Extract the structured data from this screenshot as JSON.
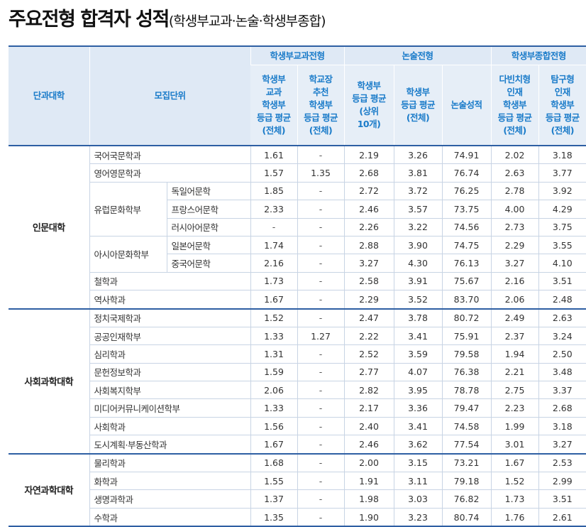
{
  "title": {
    "main": "주요전형 합격자 성적",
    "sub": "(학생부교과·논술·학생부종합)"
  },
  "header": {
    "college": "단과대학",
    "unit": "모집단위",
    "groups": [
      "학생부교과전형",
      "논술전형",
      "학생부종합전형"
    ],
    "columns": [
      [
        "학생부",
        "교과",
        "학생부",
        "등급 평균",
        "(전체)"
      ],
      [
        "학교장",
        "추천",
        "학생부",
        "등급 평균",
        "(전체)"
      ],
      [
        "학생부",
        "등급 평균",
        "(상위",
        "10개)"
      ],
      [
        "학생부",
        "등급 평균",
        "(전체)"
      ],
      [
        "논술성적"
      ],
      [
        "다빈치형",
        "인재",
        "학생부",
        "등급 평균",
        "(전체)"
      ],
      [
        "탐구형",
        "인재",
        "학생부",
        "등급 평균",
        "(전체)"
      ]
    ]
  },
  "colleges": [
    {
      "name": "인문대학",
      "rows": [
        {
          "unit": "국어국문학과",
          "sub": "",
          "values": [
            "1.61",
            "-",
            "2.19",
            "3.26",
            "74.91",
            "2.02",
            "3.18"
          ]
        },
        {
          "unit": "영어영문학과",
          "sub": "",
          "values": [
            "1.57",
            "1.35",
            "2.68",
            "3.81",
            "76.74",
            "2.63",
            "3.77"
          ]
        },
        {
          "unit": "유럽문화학부",
          "sub": "독일어문학",
          "values": [
            "1.85",
            "-",
            "2.72",
            "3.72",
            "76.25",
            "2.78",
            "3.92"
          ]
        },
        {
          "unit": "",
          "sub": "프랑스어문학",
          "values": [
            "2.33",
            "-",
            "2.46",
            "3.57",
            "73.75",
            "4.00",
            "4.29"
          ]
        },
        {
          "unit": "",
          "sub": "러시아어문학",
          "values": [
            "-",
            "-",
            "2.26",
            "3.22",
            "74.56",
            "2.73",
            "3.75"
          ]
        },
        {
          "unit": "아시아문화학부",
          "sub": "일본어문학",
          "values": [
            "1.74",
            "-",
            "2.88",
            "3.90",
            "74.75",
            "2.29",
            "3.55"
          ]
        },
        {
          "unit": "",
          "sub": "중국어문학",
          "values": [
            "2.16",
            "-",
            "3.27",
            "4.30",
            "76.13",
            "3.27",
            "4.10"
          ]
        },
        {
          "unit": "철학과",
          "sub": "",
          "values": [
            "1.73",
            "-",
            "2.58",
            "3.91",
            "75.67",
            "2.16",
            "3.51"
          ]
        },
        {
          "unit": "역사학과",
          "sub": "",
          "values": [
            "1.67",
            "-",
            "2.29",
            "3.52",
            "83.70",
            "2.06",
            "2.48"
          ]
        }
      ]
    },
    {
      "name": "사회과학대학",
      "rows": [
        {
          "unit": "정치국제학과",
          "sub": "",
          "values": [
            "1.52",
            "-",
            "2.47",
            "3.78",
            "80.72",
            "2.49",
            "2.63"
          ]
        },
        {
          "unit": "공공인재학부",
          "sub": "",
          "values": [
            "1.33",
            "1.27",
            "2.22",
            "3.41",
            "75.91",
            "2.37",
            "3.24"
          ]
        },
        {
          "unit": "심리학과",
          "sub": "",
          "values": [
            "1.31",
            "-",
            "2.52",
            "3.59",
            "79.58",
            "1.94",
            "2.50"
          ]
        },
        {
          "unit": "문헌정보학과",
          "sub": "",
          "values": [
            "1.59",
            "-",
            "2.77",
            "4.07",
            "76.38",
            "2.21",
            "3.48"
          ]
        },
        {
          "unit": "사회복지학부",
          "sub": "",
          "values": [
            "2.06",
            "-",
            "2.82",
            "3.95",
            "78.78",
            "2.75",
            "3.37"
          ]
        },
        {
          "unit": "미디어커뮤니케이션학부",
          "sub": "",
          "values": [
            "1.33",
            "-",
            "2.17",
            "3.36",
            "79.47",
            "2.23",
            "2.68"
          ]
        },
        {
          "unit": "사회학과",
          "sub": "",
          "values": [
            "1.56",
            "-",
            "2.40",
            "3.41",
            "74.58",
            "1.99",
            "3.18"
          ]
        },
        {
          "unit": "도시계획·부동산학과",
          "sub": "",
          "values": [
            "1.67",
            "-",
            "2.46",
            "3.62",
            "77.54",
            "3.01",
            "3.27"
          ]
        }
      ]
    },
    {
      "name": "자연과학대학",
      "rows": [
        {
          "unit": "물리학과",
          "sub": "",
          "values": [
            "1.68",
            "-",
            "2.00",
            "3.15",
            "73.21",
            "1.67",
            "2.53"
          ]
        },
        {
          "unit": "화학과",
          "sub": "",
          "values": [
            "1.55",
            "-",
            "1.91",
            "3.11",
            "79.18",
            "1.52",
            "2.99"
          ]
        },
        {
          "unit": "생명과학과",
          "sub": "",
          "values": [
            "1.37",
            "-",
            "1.98",
            "3.03",
            "76.82",
            "1.73",
            "3.51"
          ]
        },
        {
          "unit": "수학과",
          "sub": "",
          "values": [
            "1.35",
            "-",
            "1.90",
            "3.23",
            "80.74",
            "1.76",
            "2.61"
          ]
        }
      ]
    }
  ]
}
